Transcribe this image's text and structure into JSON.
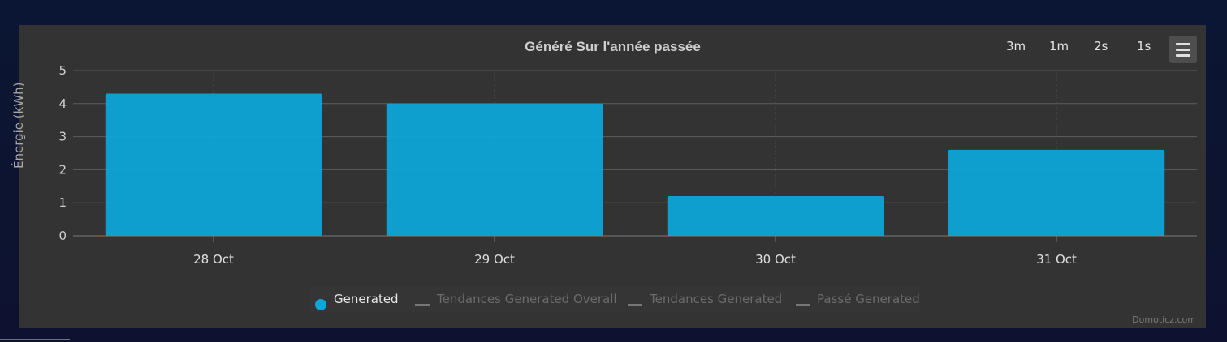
{
  "chart": {
    "title": "Généré Sur l'année passée",
    "ylabel": "Énergie (kWh)",
    "range_buttons": [
      "3m",
      "1m",
      "2s",
      "1s"
    ],
    "credits": "Domoticz.com"
  },
  "legend": [
    {
      "label": "Generated",
      "active": true
    },
    {
      "label": "Tendances Generated Overall",
      "active": false
    },
    {
      "label": "Tendances Generated",
      "active": false
    },
    {
      "label": "Passé Generated",
      "active": false
    }
  ],
  "colors": {
    "bar": "#0ea5d8",
    "panel": "#333333"
  },
  "chart_data": {
    "type": "bar",
    "title": "Généré Sur l'année passée",
    "xlabel": "",
    "ylabel": "Énergie (kWh)",
    "categories": [
      "28 Oct",
      "29 Oct",
      "30 Oct",
      "31 Oct"
    ],
    "series": [
      {
        "name": "Generated",
        "values": [
          4.3,
          4.0,
          1.2,
          2.6
        ]
      }
    ],
    "ylim": [
      0,
      5
    ],
    "yticks": [
      0,
      1,
      2,
      3,
      4,
      5
    ],
    "grid": true,
    "legend": "bottom-center"
  }
}
